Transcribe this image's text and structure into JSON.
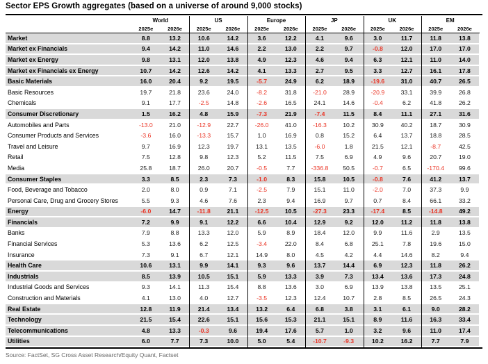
{
  "title": "Sector EPS Growth aggregates (based on a universe of around 9,000 stocks)",
  "source": "Source: FactSet, SG Cross Asset Research/Equity Quant, Factset",
  "colors": {
    "negative": "#ea3223",
    "section_band": "#d9d9d9",
    "rule": "#000000"
  },
  "table": {
    "groups": [
      "World",
      "US",
      "Europe",
      "JP",
      "UK",
      "EM"
    ],
    "year_headers": [
      "2025e",
      "2026e"
    ],
    "rows": [
      {
        "label": "Market",
        "bold": true,
        "values": [
          "8.8",
          "13.2",
          "10.6",
          "14.2",
          "3.6",
          "12.2",
          "4.1",
          "9.6",
          "3.0",
          "11.7",
          "11.8",
          "13.8"
        ]
      },
      {
        "label": "Market ex Financials",
        "bold": true,
        "values": [
          "9.4",
          "14.2",
          "11.0",
          "14.6",
          "2.2",
          "13.0",
          "2.2",
          "9.7",
          "-0.8",
          "12.0",
          "17.0",
          "17.0"
        ]
      },
      {
        "label": "Market ex Energy",
        "bold": true,
        "values": [
          "9.8",
          "13.1",
          "12.0",
          "13.8",
          "4.9",
          "12.3",
          "4.6",
          "9.4",
          "6.3",
          "12.1",
          "11.0",
          "14.0"
        ]
      },
      {
        "label": "Market ex Financials ex Energy",
        "bold": true,
        "values": [
          "10.7",
          "14.2",
          "12.6",
          "14.2",
          "4.1",
          "13.3",
          "2.7",
          "9.5",
          "3.3",
          "12.7",
          "16.1",
          "17.8"
        ]
      },
      {
        "label": "Basic Materials",
        "bold": true,
        "values": [
          "16.0",
          "20.4",
          "9.2",
          "19.5",
          "-5.7",
          "24.9",
          "6.2",
          "18.9",
          "-19.6",
          "31.0",
          "40.7",
          "26.5"
        ]
      },
      {
        "label": "Basic Resources",
        "bold": false,
        "values": [
          "19.7",
          "21.8",
          "23.6",
          "24.0",
          "-8.2",
          "31.8",
          "-21.0",
          "28.9",
          "-20.9",
          "33.1",
          "39.9",
          "26.8"
        ]
      },
      {
        "label": "Chemicals",
        "bold": false,
        "values": [
          "9.1",
          "17.7",
          "-2.5",
          "14.8",
          "-2.6",
          "16.5",
          "24.1",
          "14.6",
          "-0.4",
          "6.2",
          "41.8",
          "26.2"
        ]
      },
      {
        "label": "Consumer Discretionary",
        "bold": true,
        "values": [
          "1.5",
          "16.2",
          "4.8",
          "15.9",
          "-7.3",
          "21.9",
          "-7.4",
          "11.5",
          "8.4",
          "11.1",
          "27.1",
          "31.6"
        ]
      },
      {
        "label": "Automobiles and Parts",
        "bold": false,
        "values": [
          "-13.0",
          "21.0",
          "-12.9",
          "22.7",
          "-26.0",
          "41.0",
          "-16.3",
          "10.2",
          "30.9",
          "40.2",
          "18.7",
          "30.9"
        ]
      },
      {
        "label": "Consumer Products and Services",
        "bold": false,
        "values": [
          "-3.6",
          "16.0",
          "-13.3",
          "15.7",
          "1.0",
          "16.9",
          "0.8",
          "15.2",
          "6.4",
          "13.7",
          "18.8",
          "28.5"
        ]
      },
      {
        "label": "Travel and Leisure",
        "bold": false,
        "values": [
          "9.7",
          "16.9",
          "12.3",
          "19.7",
          "13.1",
          "13.5",
          "-6.0",
          "1.8",
          "21.5",
          "12.1",
          "-8.7",
          "42.5"
        ]
      },
      {
        "label": "Retail",
        "bold": false,
        "values": [
          "7.5",
          "12.8",
          "9.8",
          "12.3",
          "5.2",
          "11.5",
          "7.5",
          "6.9",
          "4.9",
          "9.6",
          "20.7",
          "19.0"
        ]
      },
      {
        "label": "Media",
        "bold": false,
        "values": [
          "25.8",
          "18.7",
          "26.0",
          "20.7",
          "-0.5",
          "7.7",
          "-336.8",
          "50.5",
          "-0.7",
          "6.5",
          "-170.4",
          "99.6"
        ]
      },
      {
        "label": "Consumer Staples",
        "bold": true,
        "values": [
          "3.3",
          "8.5",
          "2.3",
          "7.3",
          "-1.0",
          "8.3",
          "15.8",
          "10.5",
          "-0.8",
          "7.6",
          "41.2",
          "13.7"
        ]
      },
      {
        "label": "Food, Beverage and Tobacco",
        "bold": false,
        "values": [
          "2.0",
          "8.0",
          "0.9",
          "7.1",
          "-2.5",
          "7.9",
          "15.1",
          "11.0",
          "-2.0",
          "7.0",
          "37.3",
          "9.9"
        ]
      },
      {
        "label": "Personal Care, Drug and Grocery Stores",
        "bold": false,
        "values": [
          "5.5",
          "9.3",
          "4.6",
          "7.6",
          "2.3",
          "9.4",
          "16.9",
          "9.7",
          "0.7",
          "8.4",
          "66.1",
          "33.2"
        ]
      },
      {
        "label": "Energy",
        "bold": true,
        "values": [
          "-6.0",
          "14.7",
          "-11.8",
          "21.1",
          "-12.5",
          "10.5",
          "-27.3",
          "23.3",
          "-17.4",
          "8.5",
          "-14.8",
          "49.2"
        ]
      },
      {
        "label": "Financials",
        "bold": true,
        "values": [
          "7.2",
          "9.9",
          "9.1",
          "12.2",
          "6.6",
          "10.4",
          "12.9",
          "9.2",
          "12.0",
          "11.2",
          "11.8",
          "13.8"
        ]
      },
      {
        "label": "Banks",
        "bold": false,
        "values": [
          "7.9",
          "8.8",
          "13.3",
          "12.0",
          "5.9",
          "8.9",
          "18.4",
          "12.0",
          "9.9",
          "11.6",
          "2.9",
          "13.5"
        ]
      },
      {
        "label": "Financial Services",
        "bold": false,
        "values": [
          "5.3",
          "13.6",
          "6.2",
          "12.5",
          "-3.4",
          "22.0",
          "8.4",
          "6.8",
          "25.1",
          "7.8",
          "19.6",
          "15.0"
        ]
      },
      {
        "label": "Insurance",
        "bold": false,
        "values": [
          "7.3",
          "9.1",
          "6.7",
          "12.1",
          "14.9",
          "8.0",
          "4.5",
          "4.2",
          "4.4",
          "14.6",
          "8.2",
          "9.4"
        ]
      },
      {
        "label": "Health Care",
        "bold": true,
        "values": [
          "10.6",
          "13.1",
          "9.9",
          "14.1",
          "9.3",
          "9.6",
          "13.7",
          "14.4",
          "6.9",
          "12.3",
          "11.8",
          "26.2"
        ]
      },
      {
        "label": "Industrials",
        "bold": true,
        "values": [
          "8.5",
          "13.9",
          "10.5",
          "15.1",
          "5.9",
          "13.3",
          "3.9",
          "7.3",
          "13.4",
          "13.6",
          "17.3",
          "24.8"
        ]
      },
      {
        "label": "Industrial Goods and Services",
        "bold": false,
        "values": [
          "9.3",
          "14.1",
          "11.3",
          "15.4",
          "8.8",
          "13.6",
          "3.0",
          "6.9",
          "13.9",
          "13.8",
          "13.5",
          "25.1"
        ]
      },
      {
        "label": "Construction and Materials",
        "bold": false,
        "values": [
          "4.1",
          "13.0",
          "4.0",
          "12.7",
          "-3.5",
          "12.3",
          "12.4",
          "10.7",
          "2.8",
          "8.5",
          "26.5",
          "24.3"
        ]
      },
      {
        "label": "Real Estate",
        "bold": true,
        "values": [
          "12.8",
          "11.9",
          "21.4",
          "13.4",
          "13.2",
          "6.4",
          "6.8",
          "3.8",
          "3.1",
          "6.1",
          "9.0",
          "28.2"
        ]
      },
      {
        "label": "Technology",
        "bold": true,
        "values": [
          "21.5",
          "15.4",
          "22.6",
          "15.1",
          "15.6",
          "15.3",
          "21.1",
          "15.1",
          "8.9",
          "11.6",
          "16.3",
          "33.4"
        ]
      },
      {
        "label": "Telecommunications",
        "bold": true,
        "values": [
          "4.8",
          "13.3",
          "-0.3",
          "9.6",
          "19.4",
          "17.6",
          "5.7",
          "1.0",
          "3.2",
          "9.6",
          "11.0",
          "17.4"
        ]
      },
      {
        "label": "Utilities",
        "bold": true,
        "values": [
          "6.0",
          "7.7",
          "7.3",
          "10.0",
          "5.0",
          "5.4",
          "-10.7",
          "-9.3",
          "10.2",
          "16.2",
          "7.7",
          "7.9"
        ]
      }
    ]
  }
}
